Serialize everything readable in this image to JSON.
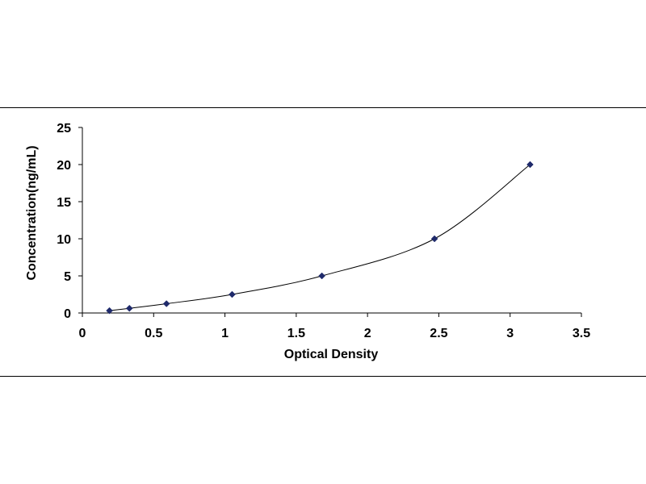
{
  "chart_data": {
    "type": "scatter",
    "title": "",
    "xlabel": "Optical Density",
    "ylabel": "Concentration(ng/mL)",
    "xlim": [
      0,
      3.5
    ],
    "ylim": [
      0,
      25
    ],
    "x_ticks": [
      0,
      0.5,
      1,
      1.5,
      2,
      2.5,
      3,
      3.5
    ],
    "x_tick_labels": [
      "0",
      "0.5",
      "1",
      "1.5",
      "2",
      "2.5",
      "3",
      "3.5"
    ],
    "y_ticks": [
      0,
      5,
      10,
      15,
      20,
      25
    ],
    "y_tick_labels": [
      "0",
      "5",
      "10",
      "15",
      "20",
      "25"
    ],
    "grid": false,
    "legend": "none",
    "series": [
      {
        "points": [
          {
            "x": 0.19,
            "y": 0.31
          },
          {
            "x": 0.33,
            "y": 0.63
          },
          {
            "x": 0.59,
            "y": 1.25
          },
          {
            "x": 1.05,
            "y": 2.5
          },
          {
            "x": 1.68,
            "y": 5
          },
          {
            "x": 2.47,
            "y": 10
          },
          {
            "x": 3.14,
            "y": 20
          }
        ],
        "marker": "diamond",
        "marker_color": "#1f2a6b",
        "trendline": "smooth",
        "trendline_color": "#000000"
      }
    ]
  }
}
